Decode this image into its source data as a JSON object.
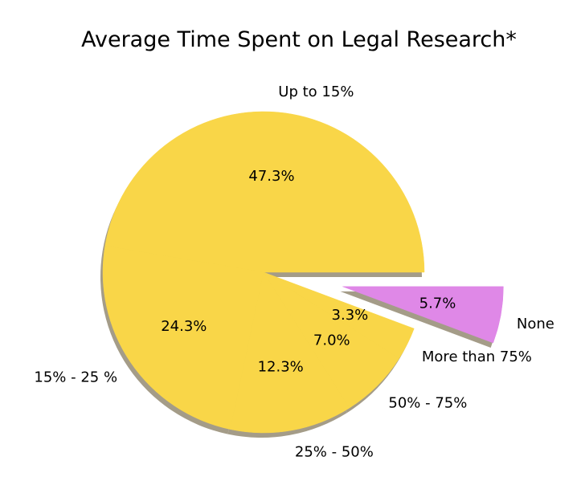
{
  "chart_data": {
    "type": "pie",
    "title": "Average Time Spent on Legal Research*",
    "slices": [
      {
        "label": "Up to 15%",
        "value": 47.3,
        "pct_label": "47.3%",
        "color": "#f9d648",
        "exploded": false
      },
      {
        "label": "15% - 25 %",
        "value": 24.3,
        "pct_label": "24.3%",
        "color": "#f9d648",
        "exploded": false
      },
      {
        "label": "25% - 50%",
        "value": 12.3,
        "pct_label": "12.3%",
        "color": "#f9d648",
        "exploded": false
      },
      {
        "label": "50% - 75%",
        "value": 7.0,
        "pct_label": "7.0%",
        "color": "#f9d648",
        "exploded": false
      },
      {
        "label": "More than 75%",
        "value": 3.3,
        "pct_label": "3.3%",
        "color": "#f9d648",
        "exploded": false
      },
      {
        "label": "None",
        "value": 5.7,
        "pct_label": "5.7%",
        "color": "#df88e7",
        "exploded": true
      }
    ],
    "start_angle": 0,
    "direction": "counterclockwise",
    "shadow": true,
    "legend": "none"
  }
}
